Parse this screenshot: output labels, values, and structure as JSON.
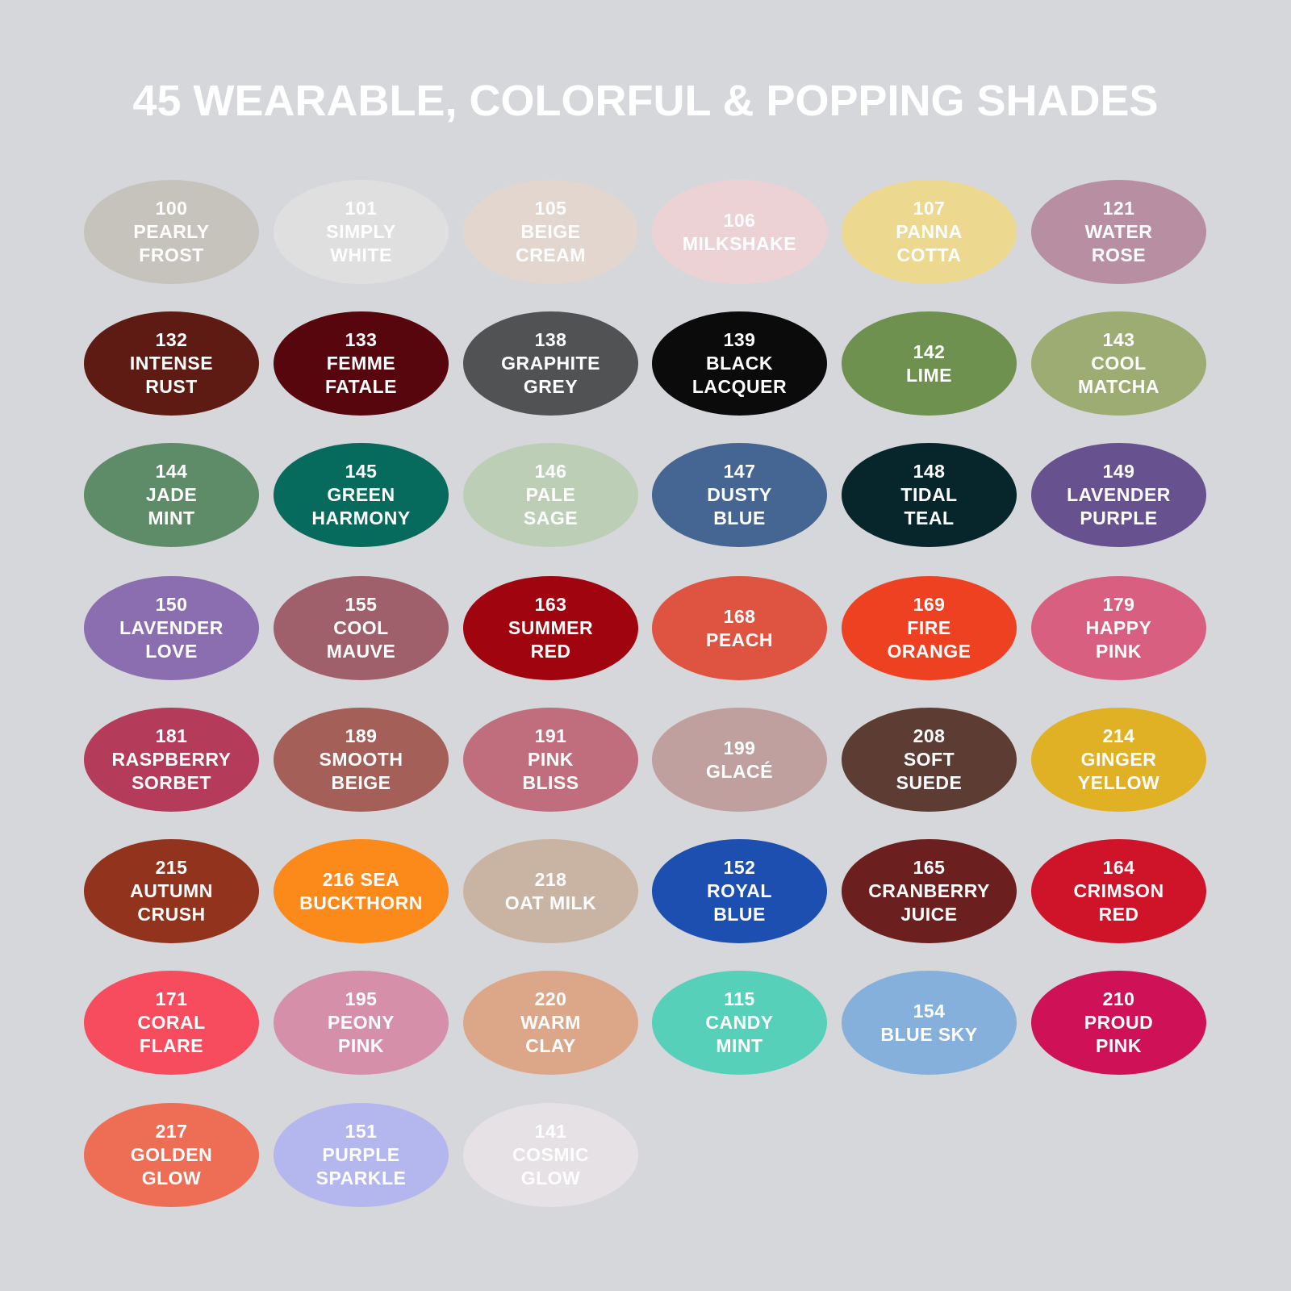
{
  "title": "45 WEARABLE, COLORFUL & POPPING SHADES",
  "shades": [
    {
      "lines": [
        "100",
        "PEARLY",
        "FROST"
      ],
      "color": "#c6c3bc"
    },
    {
      "lines": [
        "101",
        "SIMPLY",
        "WHITE"
      ],
      "color": "#dfdfe0"
    },
    {
      "lines": [
        "105",
        "BEIGE",
        "CREAM"
      ],
      "color": "#e3d6ce"
    },
    {
      "lines": [
        "106",
        "MILKSHAKE"
      ],
      "color": "#ecd2d5"
    },
    {
      "lines": [
        "107",
        "PANNA",
        "COTTA"
      ],
      "color": "#ecd98f"
    },
    {
      "lines": [
        "121",
        "WATER",
        "ROSE"
      ],
      "color": "#b88ea2"
    },
    {
      "lines": [
        "132",
        "INTENSE",
        "RUST"
      ],
      "color": "#5e1b14"
    },
    {
      "lines": [
        "133",
        "FEMME",
        "FATALE"
      ],
      "color": "#58060d"
    },
    {
      "lines": [
        "138",
        "GRAPHITE",
        "GREY"
      ],
      "color": "#515254"
    },
    {
      "lines": [
        "139",
        "BLACK",
        "LACQUER"
      ],
      "color": "#0b0b0c"
    },
    {
      "lines": [
        "142",
        "LIME"
      ],
      "color": "#6f914f"
    },
    {
      "lines": [
        "143",
        "COOL",
        "MATCHA"
      ],
      "color": "#9cac72"
    },
    {
      "lines": [
        "144",
        "JADE",
        "MINT"
      ],
      "color": "#5f8c68"
    },
    {
      "lines": [
        "145",
        "GREEN",
        "HARMONY"
      ],
      "color": "#066a5d"
    },
    {
      "lines": [
        "146",
        "PALE",
        "SAGE"
      ],
      "color": "#bccfb6"
    },
    {
      "lines": [
        "147",
        "DUSTY",
        "BLUE"
      ],
      "color": "#456592"
    },
    {
      "lines": [
        "148",
        "TIDAL",
        "TEAL"
      ],
      "color": "#06262c"
    },
    {
      "lines": [
        "149",
        "LAVENDER",
        "PURPLE"
      ],
      "color": "#67518f"
    },
    {
      "lines": [
        "150",
        "LAVENDER",
        "LOVE"
      ],
      "color": "#8a6eb0"
    },
    {
      "lines": [
        "155",
        "COOL",
        "MAUVE"
      ],
      "color": "#a0606b"
    },
    {
      "lines": [
        "163",
        "SUMMER",
        "RED"
      ],
      "color": "#a0040f"
    },
    {
      "lines": [
        "168",
        "PEACH"
      ],
      "color": "#df5341"
    },
    {
      "lines": [
        "169",
        "FIRE",
        "ORANGE"
      ],
      "color": "#ee4122"
    },
    {
      "lines": [
        "179",
        "HAPPY",
        "PINK"
      ],
      "color": "#d95f80"
    },
    {
      "lines": [
        "181",
        "RASPBERRY",
        "SORBET"
      ],
      "color": "#b53b5a"
    },
    {
      "lines": [
        "189",
        "SMOOTH",
        "BEIGE"
      ],
      "color": "#a45f58"
    },
    {
      "lines": [
        "191",
        "PINK",
        "BLISS"
      ],
      "color": "#c06e7d"
    },
    {
      "lines": [
        "199",
        "GLACÉ"
      ],
      "color": "#bfa09f"
    },
    {
      "lines": [
        "208",
        "SOFT",
        "SUEDE"
      ],
      "color": "#5d3c34"
    },
    {
      "lines": [
        "214",
        "GINGER",
        "YELLOW"
      ],
      "color": "#e1b125"
    },
    {
      "lines": [
        "215",
        "AUTUMN",
        "CRUSH"
      ],
      "color": "#92331e"
    },
    {
      "lines": [
        "216 SEA",
        "BUCKTHORN"
      ],
      "color": "#fb8a1a"
    },
    {
      "lines": [
        "218",
        "OAT MILK"
      ],
      "color": "#c9b4a3"
    },
    {
      "lines": [
        "152",
        "ROYAL",
        "BLUE"
      ],
      "color": "#1c4fb0"
    },
    {
      "lines": [
        "165",
        "CRANBERRY",
        "JUICE"
      ],
      "color": "#6b1f1f"
    },
    {
      "lines": [
        "164",
        "CRIMSON",
        "RED"
      ],
      "color": "#cf1429"
    },
    {
      "lines": [
        "171",
        "CORAL",
        "FLARE"
      ],
      "color": "#f64c5e"
    },
    {
      "lines": [
        "195",
        "PEONY",
        "PINK"
      ],
      "color": "#d58fa8"
    },
    {
      "lines": [
        "220",
        "WARM",
        "CLAY"
      ],
      "color": "#dca688"
    },
    {
      "lines": [
        "115",
        "CANDY",
        "MINT"
      ],
      "color": "#56d0b8"
    },
    {
      "lines": [
        "154",
        "BLUE SKY"
      ],
      "color": "#86b0dc"
    },
    {
      "lines": [
        "210",
        "PROUD",
        "PINK"
      ],
      "color": "#cf1157"
    },
    {
      "lines": [
        "217",
        "GOLDEN",
        "GLOW"
      ],
      "color": "#ee6d55"
    },
    {
      "lines": [
        "151",
        "PURPLE",
        "SPARKLE"
      ],
      "color": "#b4b6ee"
    },
    {
      "lines": [
        "141",
        "COSMIC",
        "GLOW"
      ],
      "color": "#e6e1e4"
    }
  ]
}
